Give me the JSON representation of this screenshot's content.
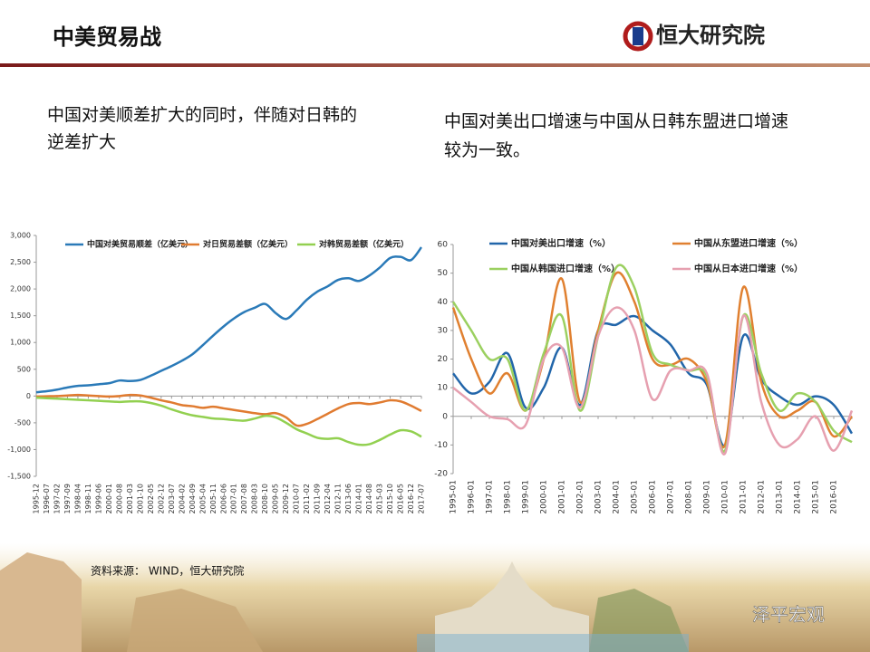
{
  "header": {
    "title": "中美贸易战",
    "logo": "恒大研究院"
  },
  "captions": [
    "中国对美顺差扩大的同时，伴随对日韩的逆差扩大",
    "中国对美出口增速与中国从日韩东盟进口增速较为一致。"
  ],
  "source": "资料来源：  WIND，恒大研究院",
  "watermark": "泽平宏观",
  "chart_data": [
    {
      "type": "line",
      "grid": false,
      "categories": [
        "1995-12",
        "1996-07",
        "1997-02",
        "1997-09",
        "1998-04",
        "1998-11",
        "1999-06",
        "2000-01",
        "2000-08",
        "2001-03",
        "2001-10",
        "2002-05",
        "2002-12",
        "2003-07",
        "2004-02",
        "2004-09",
        "2005-04",
        "2005-11",
        "2006-06",
        "2007-01",
        "2007-08",
        "2008-03",
        "2008-10",
        "2009-05",
        "2009-12",
        "2010-07",
        "2011-02",
        "2011-09",
        "2012-04",
        "2012-11",
        "2013-06",
        "2014-01",
        "2014-08",
        "2015-03",
        "2015-10",
        "2016-05",
        "2016-12",
        "2017-07"
      ],
      "series": [
        {
          "name": "中国对美贸易顺差（亿美元）",
          "color": "#2a7ab8",
          "values": [
            70,
            90,
            120,
            160,
            190,
            200,
            220,
            240,
            290,
            280,
            300,
            380,
            470,
            560,
            660,
            780,
            950,
            1130,
            1300,
            1450,
            1570,
            1650,
            1720,
            1550,
            1440,
            1600,
            1800,
            1950,
            2050,
            2170,
            2200,
            2150,
            2250,
            2400,
            2580,
            2600,
            2540,
            2780
          ]
        },
        {
          "name": "对日贸易差额（亿美元）",
          "color": "#e07b30",
          "values": [
            -10,
            -5,
            0,
            10,
            20,
            10,
            0,
            -10,
            0,
            20,
            10,
            -30,
            -80,
            -120,
            -170,
            -190,
            -220,
            -200,
            -230,
            -260,
            -290,
            -320,
            -340,
            -320,
            -400,
            -550,
            -520,
            -430,
            -330,
            -230,
            -150,
            -130,
            -150,
            -120,
            -80,
            -100,
            -180,
            -280
          ]
        },
        {
          "name": "对韩贸易差额（亿美元）",
          "color": "#92d050",
          "values": [
            -30,
            -40,
            -50,
            -60,
            -70,
            -80,
            -90,
            -100,
            -110,
            -100,
            -100,
            -130,
            -180,
            -250,
            -310,
            -360,
            -390,
            -420,
            -430,
            -450,
            -460,
            -420,
            -370,
            -400,
            -500,
            -620,
            -700,
            -780,
            -800,
            -790,
            -860,
            -910,
            -900,
            -820,
            -720,
            -640,
            -660,
            -760
          ]
        }
      ],
      "ylim": [
        -1500,
        3000
      ],
      "yticks": [
        {
          "value": -1500,
          "label": "-1,500"
        },
        {
          "value": -1000,
          "label": "-1,000"
        },
        -500,
        0,
        500,
        {
          "value": 1000,
          "label": "1,000"
        },
        {
          "value": 1500,
          "label": "1,500"
        },
        {
          "value": 2000,
          "label": "2,000"
        },
        {
          "value": 2500,
          "label": "2,500"
        },
        {
          "value": 3000,
          "label": "3,000"
        }
      ]
    },
    {
      "type": "line",
      "grid": false,
      "categories": [
        "1995-01",
        "1996-01",
        "1997-01",
        "1998-01",
        "1999-01",
        "2000-01",
        "2001-01",
        "2002-01",
        "2003-01",
        "2004-01",
        "2005-01",
        "2006-01",
        "2007-01",
        "2008-01",
        "2009-01",
        "2010-01",
        "2011-01",
        "2012-01",
        "2013-01",
        "2014-01",
        "2015-01",
        "2016-01",
        null
      ],
      "series": [
        {
          "name": "中国对美出口增速（%）",
          "color": "#2266aa",
          "values": [
            15,
            8,
            12,
            22,
            3,
            10,
            24,
            4,
            30,
            32,
            35,
            30,
            25,
            15,
            11,
            -10,
            28,
            13,
            7,
            4,
            7,
            4,
            -6
          ]
        },
        {
          "name": "中国从东盟进口增速（%）",
          "color": "#e08030",
          "values": [
            38,
            20,
            8,
            15,
            2,
            20,
            48,
            5,
            30,
            50,
            40,
            20,
            18,
            20,
            12,
            -10,
            45,
            12,
            0,
            2,
            5,
            -7,
            0
          ]
        },
        {
          "name": "中国从韩国进口增速（%）",
          "color": "#9bd060",
          "values": [
            40,
            30,
            20,
            20,
            2,
            22,
            35,
            2,
            28,
            52,
            45,
            22,
            18,
            16,
            14,
            -12,
            35,
            15,
            2,
            8,
            5,
            -5,
            -9
          ]
        },
        {
          "name": "中国从日本进口增速（%）",
          "color": "#e6a0b0",
          "values": [
            10,
            5,
            0,
            -1,
            -3,
            20,
            24,
            3,
            28,
            38,
            30,
            6,
            16,
            16,
            15,
            -13,
            35,
            5,
            -10,
            -8,
            0,
            -12,
            2
          ]
        }
      ],
      "ylim": [
        -20,
        60
      ],
      "yticks": [
        -20,
        -10,
        0,
        10,
        20,
        30,
        40,
        50,
        60
      ]
    }
  ]
}
